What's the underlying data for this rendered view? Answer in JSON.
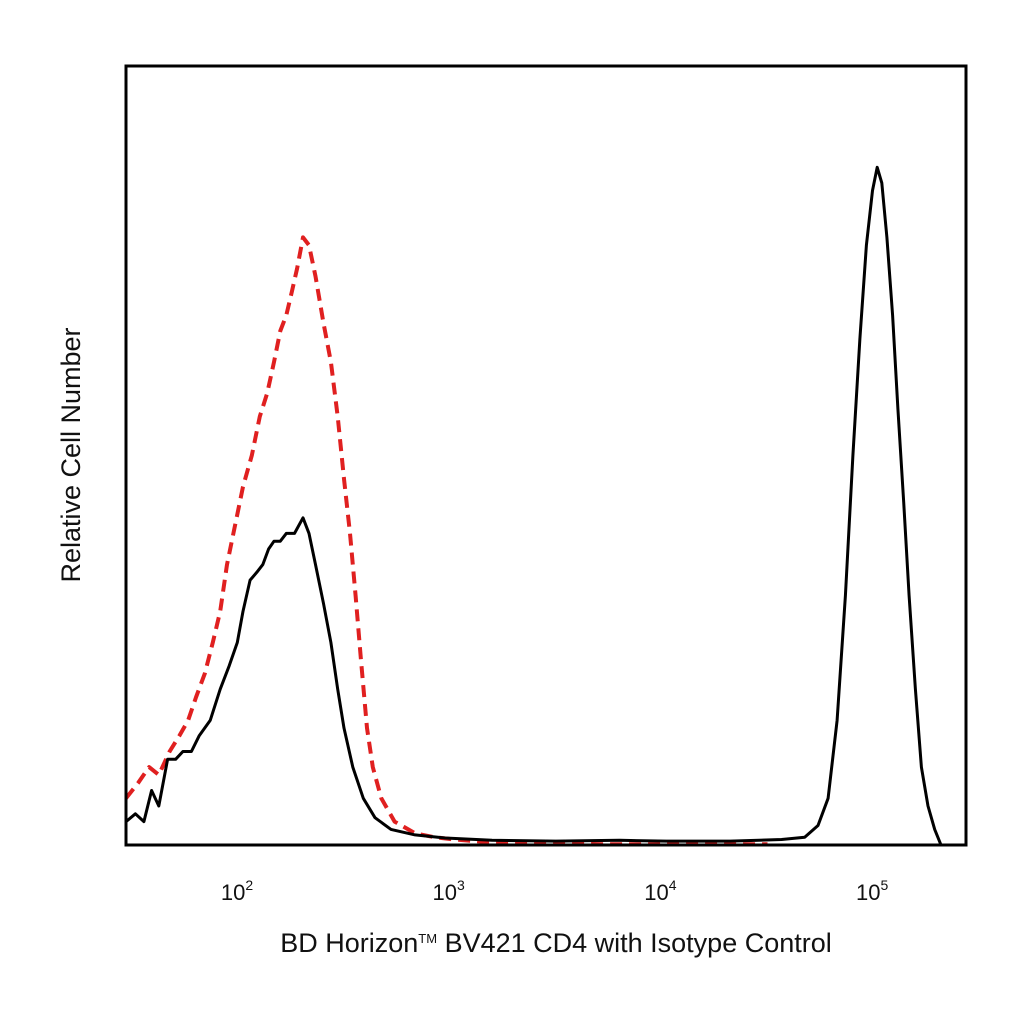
{
  "chart_data": {
    "type": "line",
    "xlabel": "BD Horizon™ BV421 CD4 with Isotype Control",
    "xlabel_parts": {
      "brand": "BD Horizon",
      "tm": "TM",
      "rest": " BV421 CD4 with Isotype Control"
    },
    "ylabel": "Relative Cell Number",
    "x_scale": "log",
    "xlim": [
      28,
      260000
    ],
    "ylim": [
      0,
      100
    ],
    "grid": false,
    "x_ticks": [
      {
        "value": 100,
        "base": "10",
        "exp": "2"
      },
      {
        "value": 1000,
        "base": "10",
        "exp": "3"
      },
      {
        "value": 10000,
        "base": "10",
        "exp": "4"
      },
      {
        "value": 100000,
        "base": "10",
        "exp": "5"
      }
    ],
    "series": [
      {
        "color": "#e02020",
        "dash": "dashed",
        "points": [
          [
            28,
            6
          ],
          [
            32,
            8
          ],
          [
            36,
            10
          ],
          [
            40,
            9
          ],
          [
            45,
            12
          ],
          [
            50,
            14
          ],
          [
            55,
            16
          ],
          [
            60,
            19
          ],
          [
            66,
            22
          ],
          [
            72,
            26
          ],
          [
            78,
            30
          ],
          [
            84,
            36
          ],
          [
            90,
            40
          ],
          [
            100,
            46
          ],
          [
            110,
            50
          ],
          [
            120,
            55
          ],
          [
            130,
            58
          ],
          [
            140,
            62
          ],
          [
            150,
            66
          ],
          [
            160,
            68
          ],
          [
            170,
            71
          ],
          [
            180,
            74
          ],
          [
            192,
            78
          ],
          [
            205,
            77
          ],
          [
            220,
            73
          ],
          [
            240,
            67
          ],
          [
            260,
            62
          ],
          [
            280,
            55
          ],
          [
            300,
            47
          ],
          [
            320,
            40
          ],
          [
            340,
            32
          ],
          [
            360,
            24
          ],
          [
            385,
            15
          ],
          [
            410,
            10
          ],
          [
            450,
            6
          ],
          [
            520,
            3
          ],
          [
            650,
            1.5
          ],
          [
            800,
            1
          ],
          [
            1000,
            0.7
          ],
          [
            1400,
            0.4
          ],
          [
            2000,
            0.3
          ],
          [
            3000,
            0.2
          ],
          [
            5000,
            0.1
          ],
          [
            10000,
            0.1
          ],
          [
            30000,
            0.1
          ]
        ]
      },
      {
        "color": "#000000",
        "dash": "solid",
        "points": [
          [
            28,
            3
          ],
          [
            31,
            4
          ],
          [
            34,
            3
          ],
          [
            37,
            7
          ],
          [
            40,
            5
          ],
          [
            44,
            11
          ],
          [
            48,
            11
          ],
          [
            52,
            12
          ],
          [
            57,
            12
          ],
          [
            62,
            14
          ],
          [
            70,
            16
          ],
          [
            78,
            20
          ],
          [
            86,
            23
          ],
          [
            94,
            26
          ],
          [
            100,
            30
          ],
          [
            108,
            34
          ],
          [
            116,
            35
          ],
          [
            124,
            36
          ],
          [
            132,
            38
          ],
          [
            140,
            39
          ],
          [
            150,
            39
          ],
          [
            160,
            40
          ],
          [
            175,
            40
          ],
          [
            192,
            42
          ],
          [
            205,
            40
          ],
          [
            220,
            36
          ],
          [
            240,
            31
          ],
          [
            260,
            26
          ],
          [
            280,
            20
          ],
          [
            300,
            15
          ],
          [
            330,
            10
          ],
          [
            370,
            6
          ],
          [
            420,
            3.5
          ],
          [
            500,
            2
          ],
          [
            650,
            1.3
          ],
          [
            900,
            0.9
          ],
          [
            1500,
            0.6
          ],
          [
            3000,
            0.5
          ],
          [
            6000,
            0.6
          ],
          [
            10000,
            0.5
          ],
          [
            20000,
            0.5
          ],
          [
            35000,
            0.7
          ],
          [
            45000,
            1
          ],
          [
            52000,
            2.5
          ],
          [
            58000,
            6
          ],
          [
            64000,
            16
          ],
          [
            70000,
            32
          ],
          [
            76000,
            50
          ],
          [
            82000,
            65
          ],
          [
            88000,
            77
          ],
          [
            94000,
            84
          ],
          [
            99000,
            87
          ],
          [
            104000,
            85
          ],
          [
            110000,
            78
          ],
          [
            117000,
            68
          ],
          [
            124000,
            56
          ],
          [
            132000,
            44
          ],
          [
            140000,
            32
          ],
          [
            150000,
            20
          ],
          [
            160000,
            10
          ],
          [
            172000,
            5
          ],
          [
            185000,
            2
          ],
          [
            198000,
            0
          ]
        ]
      }
    ]
  }
}
